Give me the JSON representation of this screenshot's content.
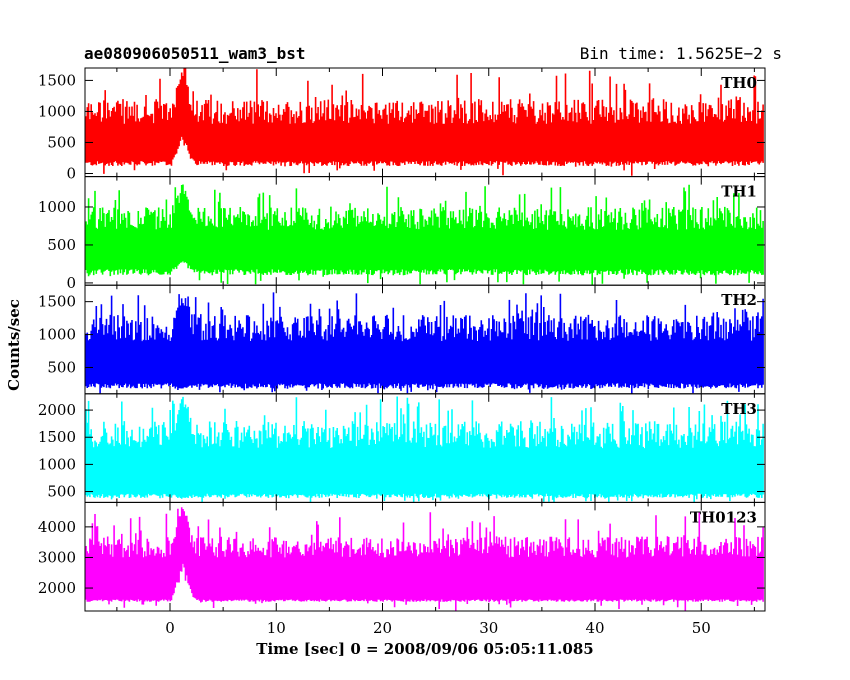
{
  "header": {
    "title": "ae080906050511_wam3_bst",
    "bin_time": "Bin time: 1.5625E−2 s"
  },
  "chart_data": {
    "type": "line",
    "xlabel": "Time [sec] 0 = 2008/09/06 05:05:11.085",
    "ylabel": "Counts/sec",
    "xlim": [
      -8,
      56
    ],
    "x_ticks": [
      0,
      10,
      20,
      30,
      40,
      50
    ],
    "panels": [
      {
        "name": "TH0",
        "color": "#ff0000",
        "ylim": [
          -50,
          1700
        ],
        "ticks": [
          0,
          500,
          1000,
          1500
        ],
        "base_low": 120,
        "base_high": 800,
        "spike_low": 1200,
        "spike_high": 1700,
        "burst_peak_low": 600,
        "burst_peak_high": 1700
      },
      {
        "name": "TH1",
        "color": "#00ff00",
        "ylim": [
          -30,
          1400
        ],
        "ticks": [
          0,
          500,
          1000
        ],
        "base_low": 100,
        "base_high": 700,
        "spike_low": 1000,
        "spike_high": 1300,
        "burst_peak_low": 300,
        "burst_peak_high": 1300
      },
      {
        "name": "TH2",
        "color": "#0000ff",
        "ylim": [
          100,
          1750
        ],
        "ticks": [
          500,
          1000,
          1500
        ],
        "base_low": 180,
        "base_high": 900,
        "spike_low": 1300,
        "spike_high": 1650,
        "burst_peak_low": 180,
        "burst_peak_high": 1600
      },
      {
        "name": "TH3",
        "color": "#00ffff",
        "ylim": [
          300,
          2300
        ],
        "ticks": [
          500,
          1000,
          1500,
          2000
        ],
        "base_low": 380,
        "base_high": 1300,
        "spike_low": 1800,
        "spike_high": 2250,
        "burst_peak_low": 380,
        "burst_peak_high": 2250
      },
      {
        "name": "TH0123",
        "color": "#ff00ff",
        "ylim": [
          1250,
          4800
        ],
        "ticks": [
          2000,
          3000,
          4000
        ],
        "base_low": 1550,
        "base_high": 3000,
        "spike_low": 3700,
        "spike_high": 4500,
        "burst_peak_low": 2800,
        "burst_peak_high": 4700
      }
    ]
  }
}
